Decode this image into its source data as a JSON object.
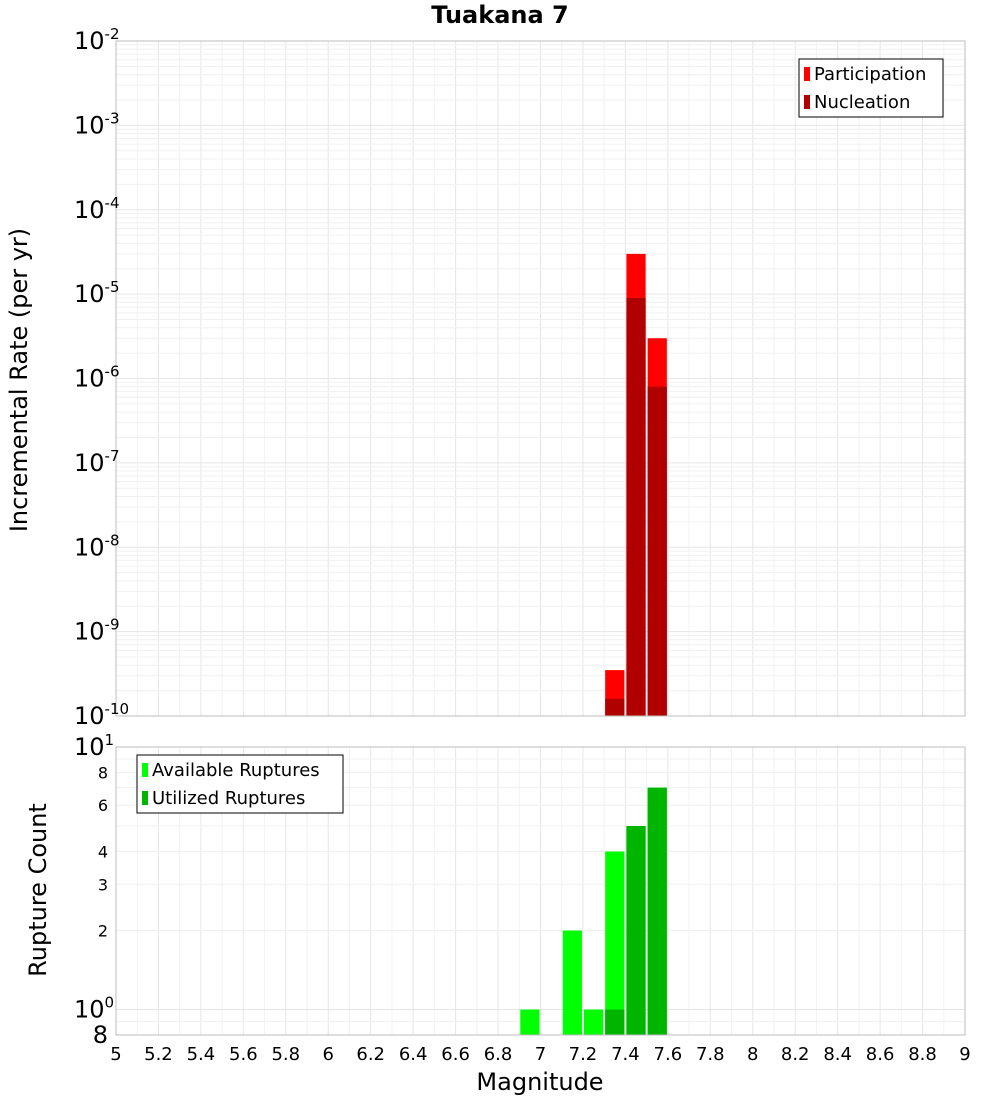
{
  "chart_data": [
    {
      "type": "bar",
      "title": "Tuakana 7",
      "xlabel": "",
      "ylabel": "Incremental Rate (per yr)",
      "xlim": [
        5,
        9
      ],
      "ylim": [
        1e-10,
        0.01
      ],
      "yscale": "log",
      "grid": true,
      "legend_position": "top-right",
      "x_ticks": [
        "5",
        "5.2",
        "5.4",
        "5.6",
        "5.8",
        "6",
        "6.2",
        "6.4",
        "6.6",
        "6.8",
        "7",
        "7.2",
        "7.4",
        "7.6",
        "7.8",
        "8",
        "8.2",
        "8.4",
        "8.6",
        "8.8",
        "9"
      ],
      "y_ticks": [
        {
          "value": 0.01,
          "base": "10",
          "exp": "-2"
        },
        {
          "value": 0.001,
          "base": "10",
          "exp": "-3"
        },
        {
          "value": 0.0001,
          "base": "10",
          "exp": "-4"
        },
        {
          "value": 1e-05,
          "base": "10",
          "exp": "-5"
        },
        {
          "value": 1e-06,
          "base": "10",
          "exp": "-6"
        },
        {
          "value": 1e-07,
          "base": "10",
          "exp": "-7"
        },
        {
          "value": 1e-08,
          "base": "10",
          "exp": "-8"
        },
        {
          "value": 1e-09,
          "base": "10",
          "exp": "-9"
        },
        {
          "value": 1e-10,
          "base": "10",
          "exp": "-10"
        }
      ],
      "bin_width": 0.1,
      "series": [
        {
          "name": "Participation",
          "color": "#ff0000",
          "x": [
            7.35,
            7.45,
            7.55
          ],
          "values": [
            3.5e-10,
            3e-05,
            3e-06
          ]
        },
        {
          "name": "Nucleation",
          "color": "#b00000",
          "x": [
            7.35,
            7.45,
            7.55
          ],
          "values": [
            1.6e-10,
            9e-06,
            8e-07
          ]
        }
      ]
    },
    {
      "type": "bar",
      "title": "",
      "xlabel": "Magnitude",
      "ylabel": "Rupture Count",
      "xlim": [
        5,
        9
      ],
      "ylim": [
        0.8,
        10
      ],
      "yscale": "log",
      "grid": true,
      "legend_position": "top-left",
      "y_ticks": [
        {
          "value": 10,
          "base": "10",
          "exp": "1"
        },
        {
          "value": 8,
          "label": "8"
        },
        {
          "value": 6,
          "label": "6"
        },
        {
          "value": 4,
          "label": "4"
        },
        {
          "value": 3,
          "label": "3"
        },
        {
          "value": 2,
          "label": "2"
        },
        {
          "value": 1,
          "base": "10",
          "exp": "0"
        },
        {
          "value": 0.8,
          "label": "8"
        }
      ],
      "bin_width": 0.1,
      "series": [
        {
          "name": "Available Ruptures",
          "color": "#00ff00",
          "x": [
            6.95,
            7.15,
            7.25,
            7.35,
            7.45,
            7.55
          ],
          "values": [
            1,
            2,
            1,
            4,
            5,
            7
          ]
        },
        {
          "name": "Utilized Ruptures",
          "color": "#00b400",
          "x": [
            7.35,
            7.45,
            7.55
          ],
          "values": [
            1,
            5,
            7
          ]
        }
      ]
    }
  ]
}
